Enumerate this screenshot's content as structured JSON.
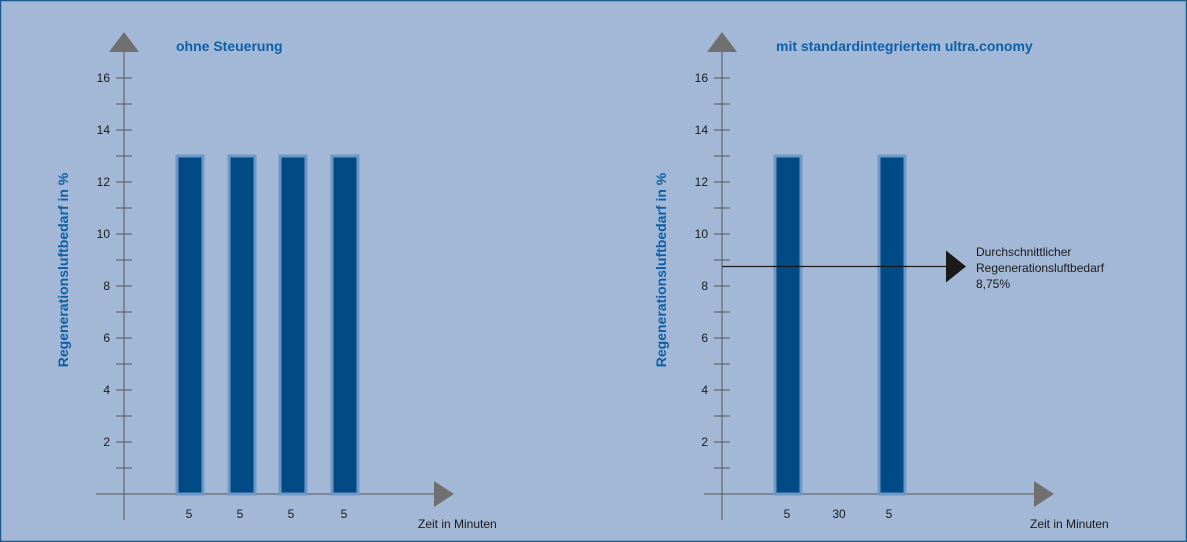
{
  "colors": {
    "background": "#a3b8d6",
    "border": "#1c5a8e",
    "bar_fill": "#004a85",
    "bar_stroke": "#6d97c4",
    "axis": "#555555",
    "arrowhead": "#707070",
    "title": "#0e5fa6",
    "text": "#1a1a1a",
    "average_arrow": "#1a1a1a"
  },
  "chart_data": [
    {
      "type": "bar",
      "title": "ohne Steuerung",
      "ylabel": "Regenerationsluftbedarf in %",
      "xlabel": "Zeit in Minuten",
      "ylim": [
        0,
        17
      ],
      "yticks": [
        2,
        4,
        6,
        8,
        10,
        12,
        14,
        16
      ],
      "grid": false,
      "legend": "none",
      "x_labels": [
        "5",
        "5",
        "5",
        "5"
      ],
      "values": [
        13,
        13,
        13,
        13
      ]
    },
    {
      "type": "bar",
      "title": "mit standardintegriertem ultra.conomy",
      "ylabel": "Regenerationsluftbedarf in %",
      "xlabel": "Zeit in Minuten",
      "ylim": [
        0,
        17
      ],
      "yticks": [
        2,
        4,
        6,
        8,
        10,
        12,
        14,
        16
      ],
      "grid": false,
      "legend": "none",
      "x_labels": [
        "5",
        "30",
        "5"
      ],
      "values": [
        13,
        13
      ],
      "average": {
        "value": 8.75,
        "lines": [
          "Durchschnittlicher",
          "Regenerationsluftbedarf",
          "8,75%"
        ]
      }
    }
  ]
}
